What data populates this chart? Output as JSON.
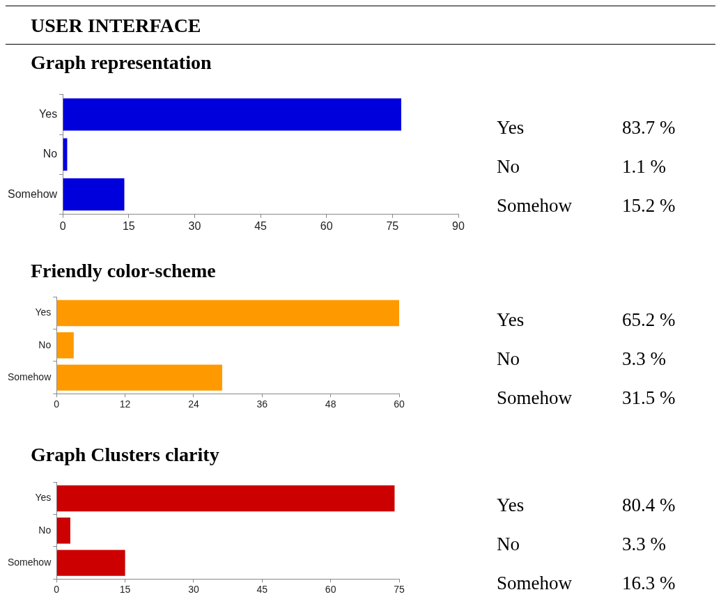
{
  "chart_data": [
    {
      "type": "bar",
      "orientation": "horizontal",
      "title": "USER INTERFACE",
      "subtitle": "Graph representation",
      "categories": [
        "Yes",
        "No",
        "Somehow"
      ],
      "values": [
        77,
        1,
        14
      ],
      "color": "#0000dd",
      "xlim": [
        0,
        90
      ],
      "xticks": [
        0,
        15,
        30,
        45,
        60,
        75,
        90
      ]
    },
    {
      "type": "other",
      "categories": [
        "Yes",
        "No",
        "Somehow"
      ],
      "value_labels": [
        "83.7 %",
        "1.1 %",
        "15.2 %"
      ]
    },
    {
      "type": "bar",
      "orientation": "horizontal",
      "title": "Friendly color-scheme",
      "categories": [
        "Yes",
        "No",
        "Somehow"
      ],
      "values": [
        60,
        3,
        29
      ],
      "color": "#ff9900",
      "xlim": [
        0,
        60
      ],
      "xticks": [
        0,
        12,
        24,
        36,
        48,
        60
      ]
    },
    {
      "type": "other",
      "categories": [
        "Yes",
        "No",
        "Somehow"
      ],
      "value_labels": [
        "65.2 %",
        "3.3 %",
        "31.5 %"
      ]
    },
    {
      "type": "bar",
      "orientation": "horizontal",
      "title": "Graph Clusters clarity",
      "categories": [
        "Yes",
        "No",
        "Somehow"
      ],
      "values": [
        74,
        3,
        15
      ],
      "color": "#cc0000",
      "xlim": [
        0,
        75
      ],
      "xticks": [
        0,
        15,
        30,
        45,
        60,
        75
      ]
    },
    {
      "type": "other",
      "categories": [
        "Yes",
        "No",
        "Somehow"
      ],
      "value_labels": [
        "80.4 %",
        "3.3 %",
        "16.3 %"
      ]
    }
  ]
}
